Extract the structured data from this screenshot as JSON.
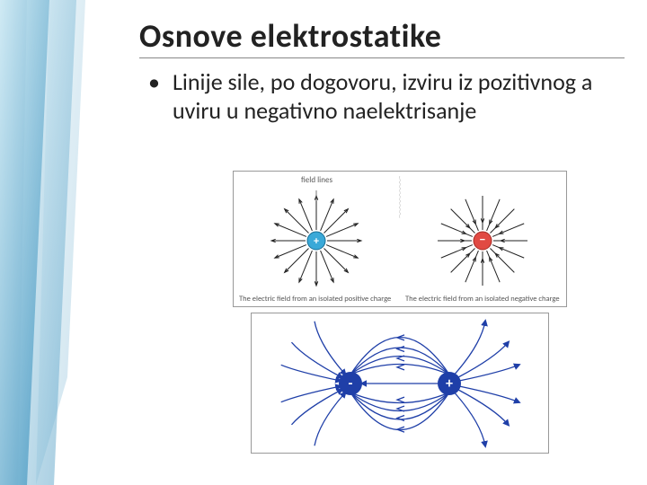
{
  "slide": {
    "title": "Osnove elektrostatike",
    "bullet": "Linije sile, po dogovoru, izviru iz pozitivnog a uviru u negativno naelektrisanje",
    "background_color": "#ffffff",
    "title_color": "#222222",
    "text_color": "#222222",
    "title_fontsize": 36,
    "bullet_fontsize": 26,
    "accent_gradient": [
      "#9ed3e8",
      "#4da5c9",
      "#1d6f9f"
    ]
  },
  "figure_top": {
    "field_lines_label": "field lines",
    "positive": {
      "charge_label": "+",
      "charge_color": "#3aa9d8",
      "arrow_color": "#222222",
      "n_lines": 16,
      "direction": "outward",
      "caption": "The electric field from an isolated positive charge"
    },
    "negative": {
      "charge_label": "−",
      "charge_color": "#e14a43",
      "arrow_color": "#222222",
      "n_lines": 16,
      "direction": "inward",
      "caption": "The electric field from an isolated negative charge"
    },
    "border_color": "#999999"
  },
  "figure_bottom": {
    "left_charge": {
      "sign": "-",
      "color": "#1f3fa8"
    },
    "right_charge": {
      "sign": "+",
      "color": "#1f3fa8"
    },
    "line_color": "#1f3fa8",
    "arrow_color": "#1f3fa8",
    "background": "#ffffff",
    "border_color": "#999999"
  }
}
